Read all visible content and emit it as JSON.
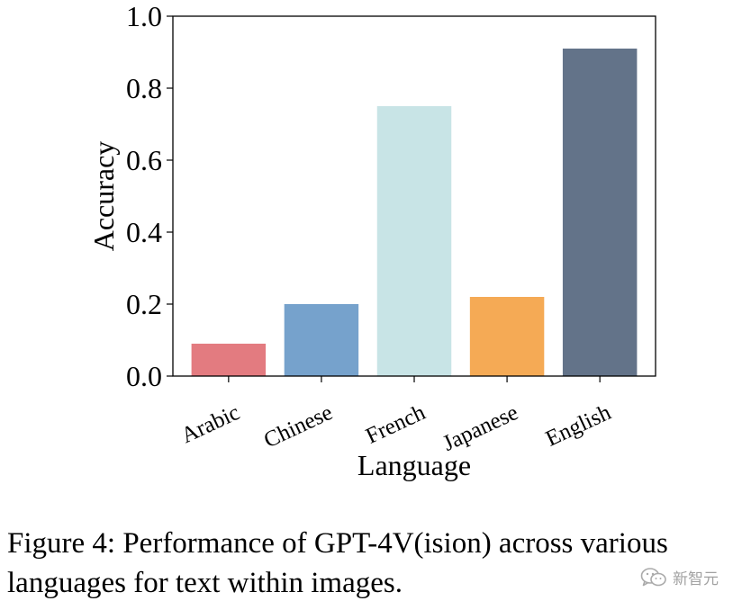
{
  "chart_data": {
    "type": "bar",
    "categories": [
      "Arabic",
      "Chinese",
      "French",
      "Japanese",
      "English"
    ],
    "values": [
      0.09,
      0.2,
      0.75,
      0.22,
      0.91
    ],
    "colors": [
      "#e37b80",
      "#76a2cc",
      "#c8e4e6",
      "#f5aa55",
      "#637389"
    ],
    "xlabel": "Language",
    "ylabel": "Accuracy",
    "ylim": [
      0,
      1.0
    ],
    "yticks": [
      "0.0",
      "0.2",
      "0.4",
      "0.6",
      "0.8",
      "1.0"
    ],
    "grid": false,
    "legend": "none"
  },
  "caption": "Figure 4: Performance of GPT-4V(ision) across various languages for text within images.",
  "watermark": {
    "icon": "wechat-icon",
    "text": "新智元"
  }
}
